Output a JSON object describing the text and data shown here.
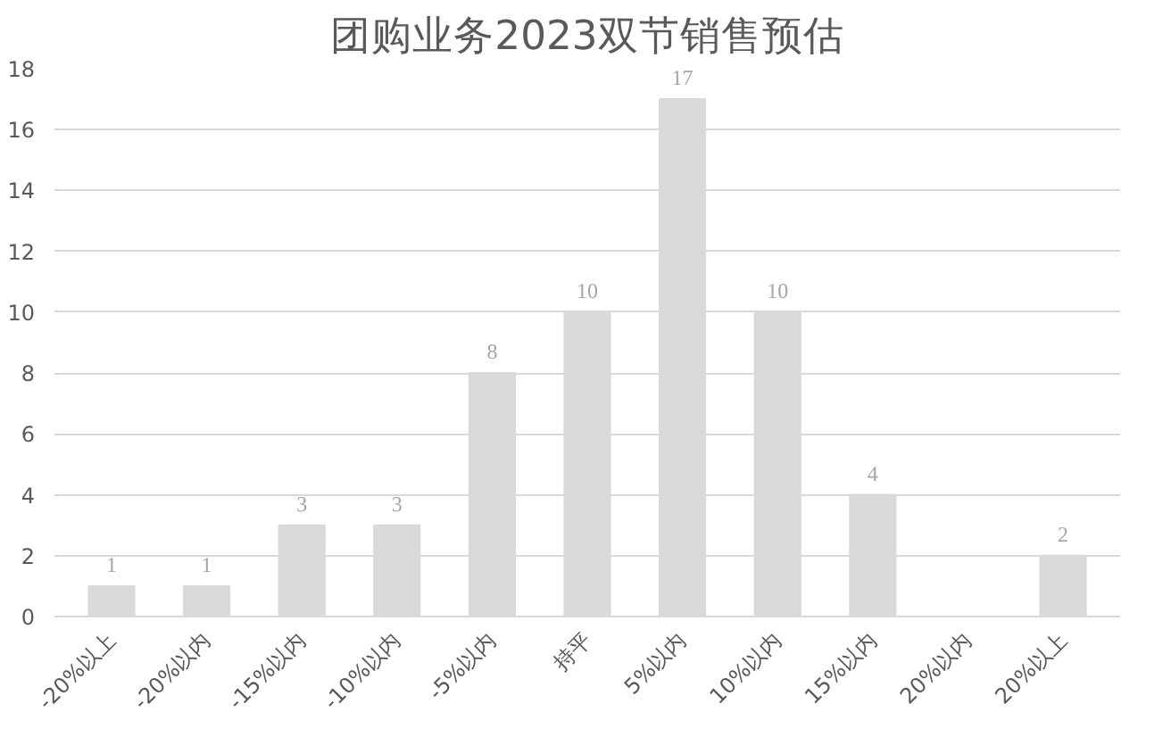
{
  "chart_data": {
    "type": "bar",
    "title": "团购业务2023双节销售预估",
    "categories": [
      "-20%以上",
      "-20%以内",
      "-15%以内",
      "-10%以内",
      "-5%以内",
      "持平",
      "5%以内",
      "10%以内",
      "15%以内",
      "20%以内",
      "20%以上"
    ],
    "values": [
      1,
      1,
      3,
      3,
      8,
      10,
      17,
      10,
      4,
      null,
      2
    ],
    "color": "#d9d9d9",
    "ylim": [
      0,
      18
    ],
    "yticks": [
      0,
      2,
      4,
      6,
      8,
      10,
      12,
      14,
      16,
      18
    ],
    "grid": "y",
    "data_labels": true
  }
}
